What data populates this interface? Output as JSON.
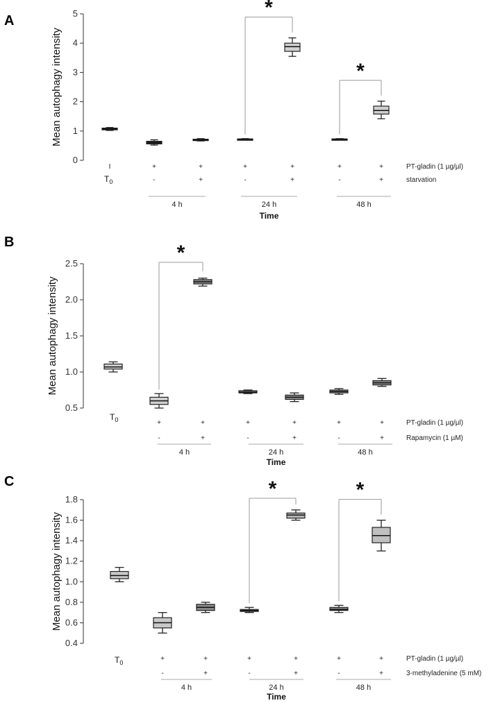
{
  "chart_data": [
    {
      "panel": "A",
      "type": "box",
      "ylabel": "Mean autophagy intensity",
      "ylim": [
        0,
        5
      ],
      "yticks": [
        "0",
        "1",
        "2",
        "3",
        "4",
        "5"
      ],
      "t0_label": "T",
      "t0_sub": "0",
      "row1_label": "PT-gladin (1 µg/µl)",
      "row2_label": "starvation",
      "time_label": "Time",
      "groups": [
        "4 h",
        "24 h",
        "48 h"
      ],
      "boxes": [
        {
          "min": 1.02,
          "q1": 1.04,
          "median": 1.07,
          "q3": 1.1,
          "max": 1.12,
          "row1": "I",
          "row2": "",
          "box_color": "#2a2a2a"
        },
        {
          "min": 0.52,
          "q1": 0.56,
          "median": 0.6,
          "q3": 0.65,
          "max": 0.7,
          "row1": "+",
          "row2": "-",
          "box_color": "#2a2a2a"
        },
        {
          "min": 0.66,
          "q1": 0.68,
          "median": 0.7,
          "q3": 0.72,
          "max": 0.74,
          "row1": "+",
          "row2": "+",
          "box_color": "#2a2a2a"
        },
        {
          "min": 0.7,
          "q1": 0.71,
          "median": 0.72,
          "q3": 0.73,
          "max": 0.74,
          "row1": "+",
          "row2": "-",
          "box_color": "#2a2a2a"
        },
        {
          "min": 3.55,
          "q1": 3.72,
          "median": 3.88,
          "q3": 4.0,
          "max": 4.18,
          "row1": "+",
          "row2": "+",
          "box_color": "#d0d0d0"
        },
        {
          "min": 0.7,
          "q1": 0.71,
          "median": 0.72,
          "q3": 0.73,
          "max": 0.74,
          "row1": "+",
          "row2": "-",
          "box_color": "#2a2a2a"
        },
        {
          "min": 1.42,
          "q1": 1.58,
          "median": 1.7,
          "q3": 1.85,
          "max": 2.02,
          "row1": "+",
          "row2": "+",
          "box_color": "#d0d0d0"
        }
      ],
      "significance": [
        {
          "from": 3,
          "to": 4,
          "label": "*"
        },
        {
          "from": 5,
          "to": 6,
          "label": "*"
        }
      ]
    },
    {
      "panel": "B",
      "type": "box",
      "ylabel": "Mean autophagy intensity",
      "ylim": [
        0.5,
        2.5
      ],
      "yticks": [
        "0.5",
        "1.0",
        "1.5",
        "2.0",
        "2.5"
      ],
      "t0_label": "T",
      "t0_sub": "0",
      "row1_label": "PT-gladin (1 µg/µl)",
      "row2_label": "Rapamycin (1 µM)",
      "time_label": "Time",
      "groups": [
        "4 h",
        "24 h",
        "48 h"
      ],
      "boxes": [
        {
          "min": 1.0,
          "q1": 1.04,
          "median": 1.07,
          "q3": 1.11,
          "max": 1.14,
          "row1": "",
          "row2": "",
          "box_color": "#d0d0d0"
        },
        {
          "min": 0.5,
          "q1": 0.55,
          "median": 0.6,
          "q3": 0.65,
          "max": 0.7,
          "row1": "+",
          "row2": "-",
          "box_color": "#d0d0d0"
        },
        {
          "min": 2.19,
          "q1": 2.22,
          "median": 2.25,
          "q3": 2.28,
          "max": 2.3,
          "row1": "+",
          "row2": "+",
          "box_color": "#8a8a8a"
        },
        {
          "min": 0.7,
          "q1": 0.71,
          "median": 0.72,
          "q3": 0.74,
          "max": 0.75,
          "row1": "+",
          "row2": "-",
          "box_color": "#8a8a8a"
        },
        {
          "min": 0.59,
          "q1": 0.62,
          "median": 0.65,
          "q3": 0.68,
          "max": 0.71,
          "row1": "+",
          "row2": "+",
          "box_color": "#8a8a8a"
        },
        {
          "min": 0.69,
          "q1": 0.71,
          "median": 0.73,
          "q3": 0.75,
          "max": 0.77,
          "row1": "+",
          "row2": "-",
          "box_color": "#8a8a8a"
        },
        {
          "min": 0.8,
          "q1": 0.82,
          "median": 0.85,
          "q3": 0.88,
          "max": 0.91,
          "row1": "+",
          "row2": "+",
          "box_color": "#8a8a8a"
        }
      ],
      "significance": [
        {
          "from": 1,
          "to": 2,
          "label": "*"
        }
      ]
    },
    {
      "panel": "C",
      "type": "box",
      "ylabel": "Mean autophagy intensity",
      "ylim": [
        0.4,
        1.8
      ],
      "yticks": [
        "0.4",
        "0.6",
        "0.8",
        "1.0",
        "1.2",
        "1.4",
        "1.6",
        "1.8"
      ],
      "t0_label": "T",
      "t0_sub": "0",
      "row1_label": "PT-gladin (1 µg/µl)",
      "row2_label": "3-methyladenine (5 mM)",
      "time_label": "Time",
      "groups": [
        "4 h",
        "24 h",
        "48 h"
      ],
      "boxes": [
        {
          "min": 1.0,
          "q1": 1.03,
          "median": 1.06,
          "q3": 1.1,
          "max": 1.14,
          "row1": "",
          "row2": "",
          "box_color": "#c8c8c8"
        },
        {
          "min": 0.5,
          "q1": 0.55,
          "median": 0.6,
          "q3": 0.65,
          "max": 0.7,
          "row1": "+",
          "row2": "-",
          "box_color": "#c8c8c8"
        },
        {
          "min": 0.7,
          "q1": 0.72,
          "median": 0.75,
          "q3": 0.78,
          "max": 0.8,
          "row1": "+",
          "row2": "+",
          "box_color": "#8a8a8a"
        },
        {
          "min": 0.7,
          "q1": 0.71,
          "median": 0.72,
          "q3": 0.73,
          "max": 0.75,
          "row1": "+",
          "row2": "-",
          "box_color": "#8a8a8a"
        },
        {
          "min": 1.6,
          "q1": 1.62,
          "median": 1.65,
          "q3": 1.67,
          "max": 1.7,
          "row1": "+",
          "row2": "+",
          "box_color": "#b5b5b5"
        },
        {
          "min": 0.7,
          "q1": 0.72,
          "median": 0.73,
          "q3": 0.75,
          "max": 0.77,
          "row1": "+",
          "row2": "-",
          "box_color": "#8a8a8a"
        },
        {
          "min": 1.3,
          "q1": 1.38,
          "median": 1.45,
          "q3": 1.53,
          "max": 1.6,
          "row1": "+",
          "row2": "+",
          "box_color": "#c0c0c0"
        }
      ],
      "significance": [
        {
          "from": 3,
          "to": 4,
          "label": "*"
        },
        {
          "from": 5,
          "to": 6,
          "label": "*"
        }
      ]
    }
  ]
}
